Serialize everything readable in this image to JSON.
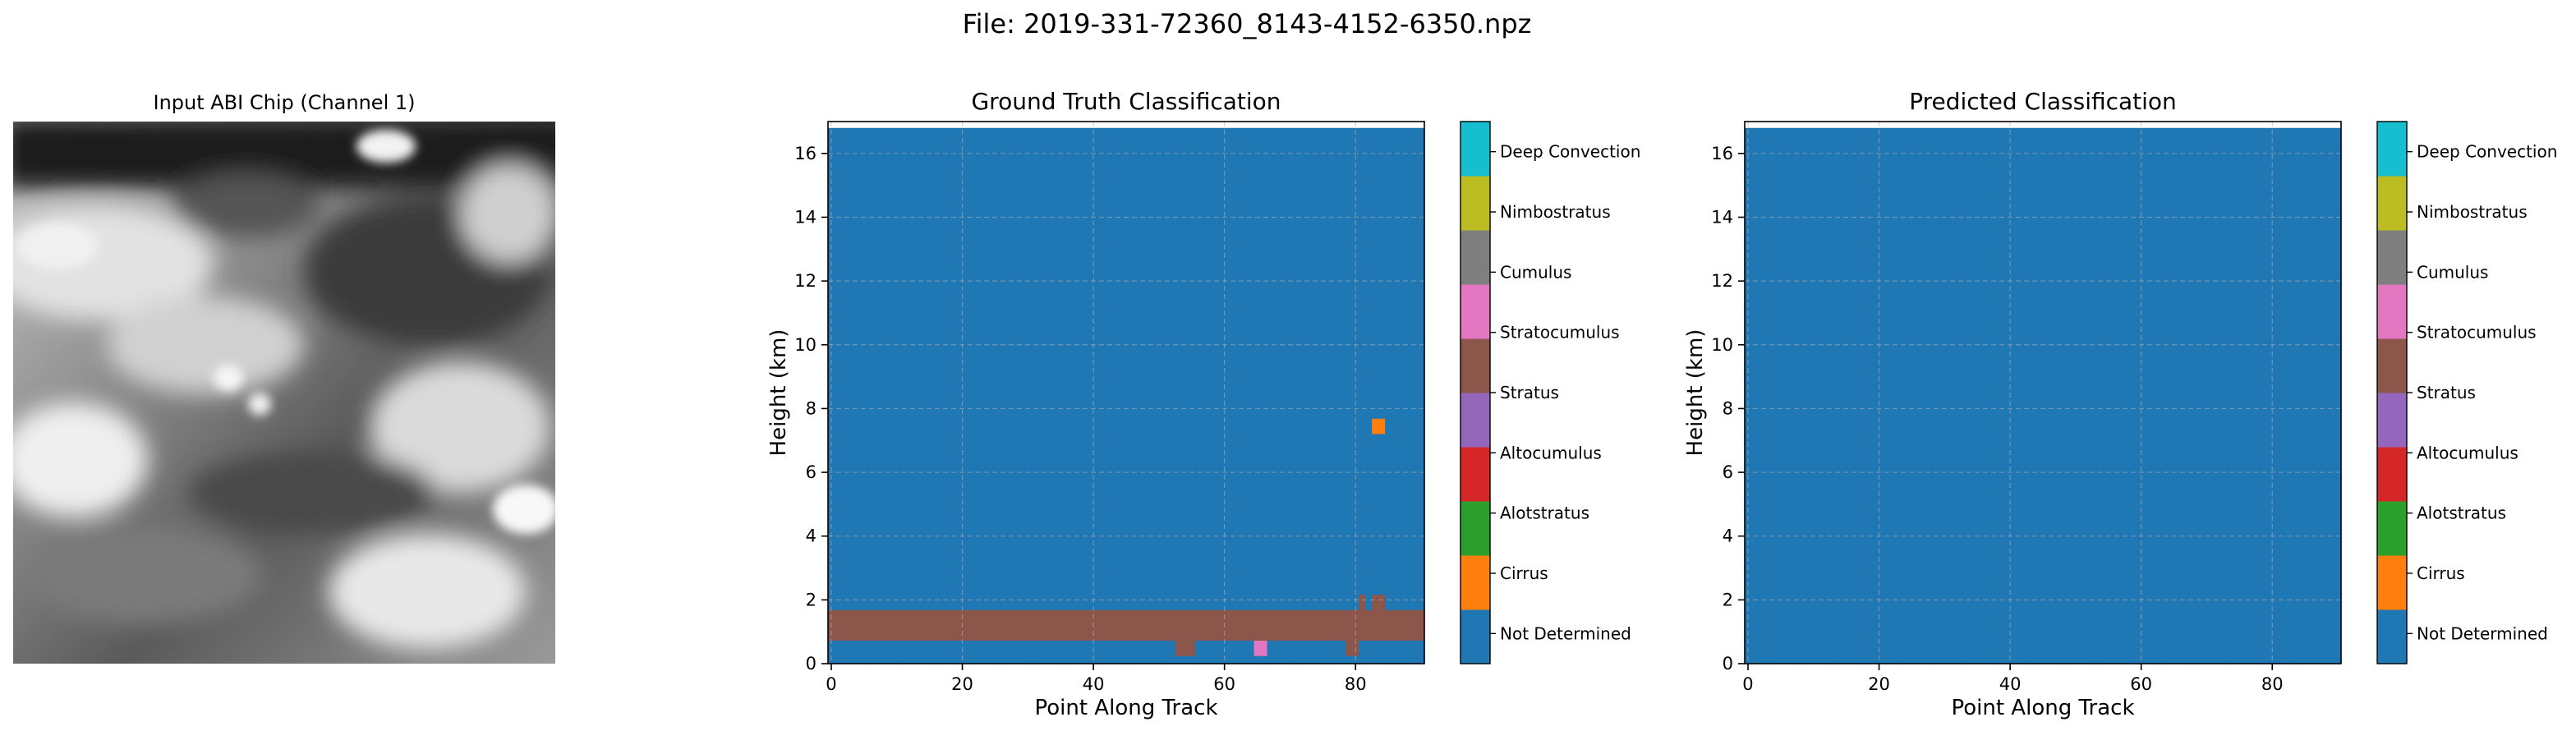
{
  "figure_title": "File: 2019-331-72360_8143-4152-6350.npz",
  "colors": {
    "class_palette": [
      "#1f77b4",
      "#ff7f0e",
      "#2ca02c",
      "#d62728",
      "#9467bd",
      "#8c564b",
      "#e377c2",
      "#7f7f7f",
      "#bcbd22",
      "#17becf"
    ],
    "grid": "#b0b0b0",
    "axis": "#000000"
  },
  "image_panel": {
    "title": "Input ABI Chip (Channel 1)",
    "colormap": "grayscale"
  },
  "colorbar": {
    "labels": [
      "Not Determined",
      "Cirrus",
      "Alotstratus",
      "Altocumulus",
      "Stratus",
      "Stratocumulus",
      "Cumulus",
      "Nimbostratus",
      "Deep Convection"
    ]
  },
  "chart_data": [
    {
      "type": "heatmap",
      "title": "Ground Truth Classification",
      "xlabel": "Point Along Track",
      "ylabel": "Height (km)",
      "xlim": [
        -0.5,
        90.5
      ],
      "ylim": [
        0,
        17
      ],
      "xticks": [
        0,
        20,
        40,
        60,
        80
      ],
      "yticks": [
        0,
        2,
        4,
        6,
        8,
        10,
        12,
        14,
        16
      ],
      "grid": true,
      "background_class": "Not Determined",
      "data_top_km": 16.8,
      "regions": [
        {
          "class": "Stratocumulus",
          "x0": -0.5,
          "x1": 90.5,
          "y0": 0.72,
          "y1": 1.68
        },
        {
          "class": "Stratocumulus",
          "x0": 52.5,
          "x1": 55.5,
          "y0": 0.24,
          "y1": 0.72
        },
        {
          "class": "Stratocumulus",
          "x0": 78.5,
          "x1": 80.5,
          "y0": 0.24,
          "y1": 0.72
        },
        {
          "class": "Cumulus",
          "x0": 64.5,
          "x1": 66.5,
          "y0": 0.24,
          "y1": 0.72
        },
        {
          "class": "Stratocumulus",
          "x0": 80.5,
          "x1": 81.5,
          "y0": 1.68,
          "y1": 2.16
        },
        {
          "class": "Stratocumulus",
          "x0": 82.5,
          "x1": 84.5,
          "y0": 1.68,
          "y1": 2.16
        },
        {
          "class": "Cirrus",
          "x0": 82.5,
          "x1": 84.5,
          "y0": 7.2,
          "y1": 7.68
        }
      ]
    },
    {
      "type": "heatmap",
      "title": "Predicted Classification",
      "xlabel": "Point Along Track",
      "ylabel": "Height (km)",
      "xlim": [
        -0.5,
        90.5
      ],
      "ylim": [
        0,
        17
      ],
      "xticks": [
        0,
        20,
        40,
        60,
        80
      ],
      "yticks": [
        0,
        2,
        4,
        6,
        8,
        10,
        12,
        14,
        16
      ],
      "grid": true,
      "background_class": "Not Determined",
      "data_top_km": 16.8,
      "regions": []
    }
  ]
}
